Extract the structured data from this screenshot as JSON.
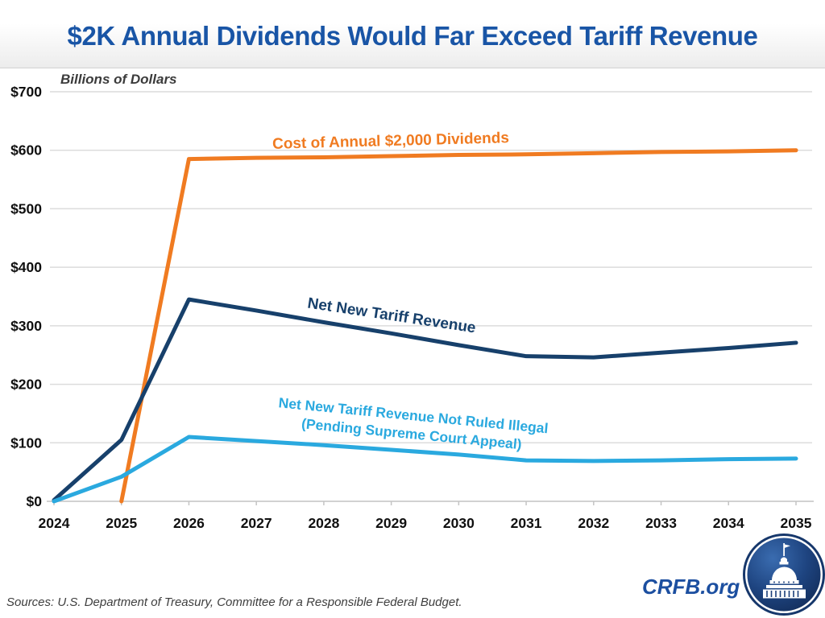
{
  "header": {
    "title": "$2K Annual Dividends Would Far Exceed Tariff Revenue"
  },
  "chart_data": {
    "type": "line",
    "units_label": "Billions of Dollars",
    "x": [
      2024,
      2025,
      2026,
      2027,
      2028,
      2029,
      2030,
      2031,
      2032,
      2033,
      2034,
      2035
    ],
    "ylim": [
      0,
      700
    ],
    "grid": true,
    "legend": "inline-labels",
    "yticks": [
      {
        "value": 0,
        "label": "$0"
      },
      {
        "value": 100,
        "label": "$100"
      },
      {
        "value": 200,
        "label": "$200"
      },
      {
        "value": 300,
        "label": "$300"
      },
      {
        "value": 400,
        "label": "$400"
      },
      {
        "value": 500,
        "label": "$500"
      },
      {
        "value": 600,
        "label": "$600"
      },
      {
        "value": 700,
        "label": "$700"
      }
    ],
    "series": [
      {
        "name": "Cost of Annual $2,000 Dividends",
        "color": "#f07b21",
        "x": [
          2025,
          2026,
          2027,
          2028,
          2029,
          2030,
          2031,
          2032,
          2033,
          2034,
          2035
        ],
        "values": [
          0,
          585,
          587,
          588,
          590,
          592,
          593,
          595,
          597,
          598,
          600
        ]
      },
      {
        "name": "Net New Tariff Revenue",
        "color": "#17406b",
        "x": [
          2024,
          2025,
          2026,
          2027,
          2028,
          2029,
          2030,
          2031,
          2032,
          2033,
          2034,
          2035
        ],
        "values": [
          2,
          105,
          345,
          326,
          306,
          287,
          267,
          248,
          246,
          254,
          262,
          271
        ]
      },
      {
        "name": "Net New Tariff Revenue Not Ruled Illegal (Pending Supreme Court Appeal)",
        "color": "#2aa9df",
        "x": [
          2024,
          2025,
          2026,
          2027,
          2028,
          2029,
          2030,
          2031,
          2032,
          2033,
          2034,
          2035
        ],
        "values": [
          0,
          42,
          110,
          103,
          96,
          88,
          80,
          70,
          69,
          70,
          72,
          73
        ]
      }
    ]
  },
  "series_labels": {
    "dividends": "Cost of Annual $2,000 Dividends",
    "tariff": "Net New Tariff Revenue",
    "not_ruled_line1": "Net New Tariff Revenue Not Ruled Illegal",
    "not_ruled_line2": "(Pending Supreme Court Appeal)"
  },
  "footer": {
    "sources": "Sources: U.S. Department of Treasury, Committee for a Responsible Federal Budget.",
    "brand": "CRFB.org"
  },
  "colors": {
    "title_blue": "#1955a6",
    "orange": "#f07b21",
    "navy": "#17406b",
    "light_blue": "#2aa9df",
    "brand_blue": "#1c4fa0",
    "gridline": "#dcdcdc",
    "axis": "#c4c4c4"
  }
}
